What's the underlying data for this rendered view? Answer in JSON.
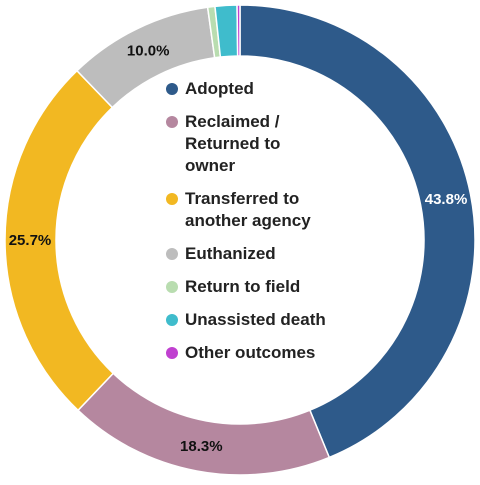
{
  "chart_data": {
    "type": "pie",
    "donut": true,
    "title": "",
    "legend_position": "center",
    "slices": [
      {
        "label": "Adopted",
        "value": 43.8,
        "display": "43.8%",
        "color": "#2e5a8a",
        "label_color": "#ffffff"
      },
      {
        "label": "Reclaimed / Returned to owner",
        "value": 18.3,
        "display": "18.3%",
        "color": "#b5879f",
        "label_color": "#111111"
      },
      {
        "label": "Transferred to another agency",
        "value": 25.7,
        "display": "25.7%",
        "color": "#f2b822",
        "label_color": "#111111"
      },
      {
        "label": "Euthanized",
        "value": 10.0,
        "display": "10.0%",
        "color": "#bdbdbd",
        "label_color": "#111111"
      },
      {
        "label": "Return to field",
        "value": 0.5,
        "display": "",
        "color": "#b9ddb0",
        "label_color": "#111111"
      },
      {
        "label": "Unassisted death",
        "value": 1.5,
        "display": "",
        "color": "#3fbccc",
        "label_color": "#111111"
      },
      {
        "label": "Other outcomes",
        "value": 0.2,
        "display": "",
        "color": "#c040d0",
        "label_color": "#111111"
      }
    ]
  },
  "legend": {
    "items": [
      {
        "text": "Adopted",
        "color": "#2e5a8a"
      },
      {
        "text": "Reclaimed /\nReturned to\nowner",
        "color": "#b5879f"
      },
      {
        "text": "Transferred to\nanother agency",
        "color": "#f2b822"
      },
      {
        "text": "Euthanized",
        "color": "#bdbdbd"
      },
      {
        "text": "Return to field",
        "color": "#b9ddb0"
      },
      {
        "text": "Unassisted death",
        "color": "#3fbccc"
      },
      {
        "text": "Other outcomes",
        "color": "#c040d0"
      }
    ]
  }
}
